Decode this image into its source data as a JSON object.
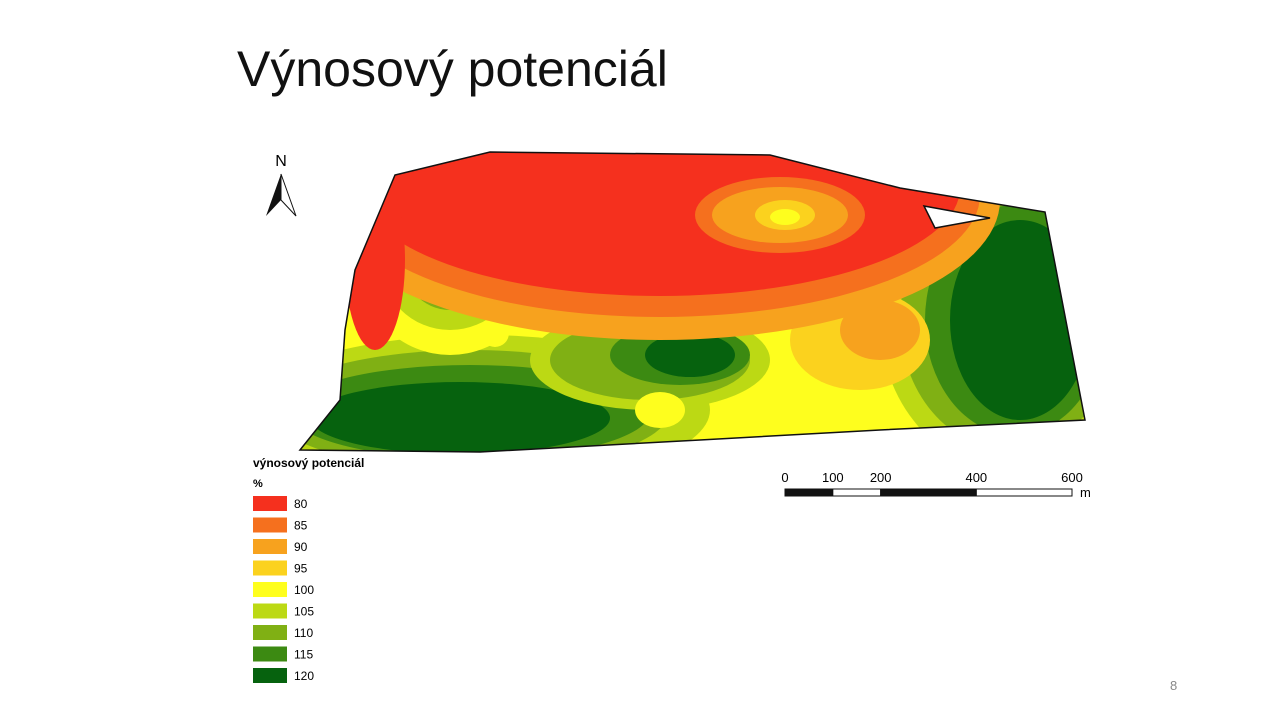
{
  "title": "Výnosový potenciál",
  "map": {
    "north": "N",
    "legend": {
      "title": "výnosový potenciál",
      "unit": "%",
      "classes": [
        {
          "label": "80",
          "color": "#f5301e"
        },
        {
          "label": "85",
          "color": "#f5701e"
        },
        {
          "label": "90",
          "color": "#f7a21e"
        },
        {
          "label": "95",
          "color": "#fbd21e"
        },
        {
          "label": "100",
          "color": "#fefe1e"
        },
        {
          "label": "105",
          "color": "#bcd914"
        },
        {
          "label": "110",
          "color": "#80b014"
        },
        {
          "label": "115",
          "color": "#3c8a12"
        },
        {
          "label": "120",
          "color": "#06620e"
        }
      ]
    },
    "scale_bar": {
      "ticks": [
        0,
        100,
        200,
        400,
        600
      ],
      "unit": "m"
    }
  },
  "page_number": "8"
}
